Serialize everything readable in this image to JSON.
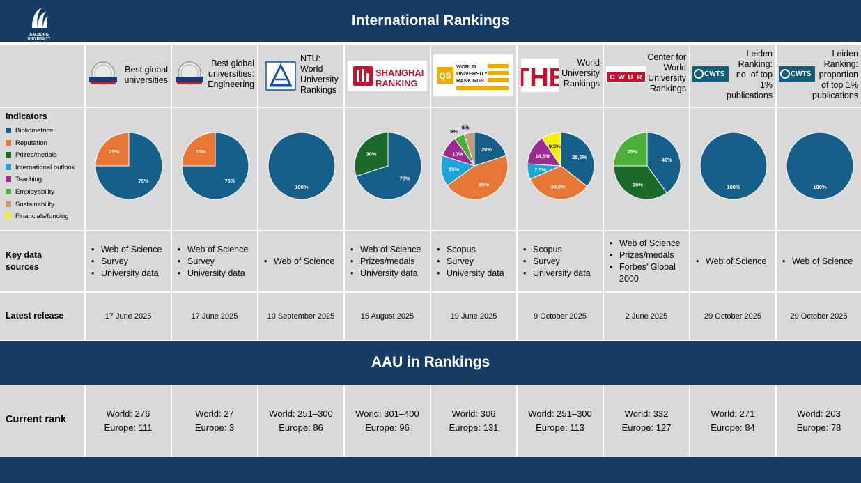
{
  "header": {
    "title": "International Rankings",
    "logo_text": "AALBORG UNIVERSITY"
  },
  "section2": {
    "title": "AAU in Rankings"
  },
  "colors": {
    "band": "#173c64",
    "cell": "#d9d9d9",
    "Bibliometrics": "#155f8a",
    "Reputation": "#e87634",
    "Prizes/medals": "#1b6a2a",
    "International outlook": "#1ea4d8",
    "Teaching": "#9c2b93",
    "Employability": "#4caf3a",
    "Sustainability": "#c49a79",
    "Financials/funding": "#f5f00a"
  },
  "rows": {
    "indicators": "Indicators",
    "key_sources": "Key data sources",
    "latest_release": "Latest release",
    "current_rank": "Current rank"
  },
  "legend": [
    "Bibliometrics",
    "Reputation",
    "Prizes/medals",
    "International outlook",
    "Teaching",
    "Employability",
    "Sustainability",
    "Financials/funding"
  ],
  "rankings": [
    {
      "name": "Best global universities",
      "logo": "usnews-icon",
      "sources": [
        "Web of Science",
        "Survey",
        "University data"
      ],
      "release": "17 June 2025",
      "world": "World: 276",
      "europe": "Europe: 111",
      "pie": [
        {
          "cat": "Bibliometrics",
          "v": 75,
          "label": "75%"
        },
        {
          "cat": "Reputation",
          "v": 25,
          "label": "25%"
        }
      ]
    },
    {
      "name": "Best global universities: Engineering",
      "logo": "usnews-icon",
      "sources": [
        "Web of Science",
        "Survey",
        "University data"
      ],
      "release": "17 June 2025",
      "world": "World: 27",
      "europe": "Europe: 3",
      "pie": [
        {
          "cat": "Bibliometrics",
          "v": 75,
          "label": "75%"
        },
        {
          "cat": "Reputation",
          "v": 25,
          "label": "25%"
        }
      ]
    },
    {
      "name": "NTU: World University Rankings",
      "logo": "ntu-icon",
      "sources": [
        "Web of Science"
      ],
      "release": "10 September 2025",
      "world": "World: 251–300",
      "europe": "Europe: 86",
      "pie": [
        {
          "cat": "Bibliometrics",
          "v": 100,
          "label": "100%"
        }
      ]
    },
    {
      "name": "SHANGHAI RANKING",
      "logo": "shanghai-ranking-logo",
      "sources": [
        "Web of Science",
        "Prizes/medals",
        "University data"
      ],
      "release": "15 August 2025",
      "world": "World: 301–400",
      "europe": "Europe: 96",
      "pie": [
        {
          "cat": "Bibliometrics",
          "v": 70,
          "label": "70%"
        },
        {
          "cat": "Prizes/medals",
          "v": 30,
          "label": "30%"
        }
      ]
    },
    {
      "name": "WORLD UNIVERSITY RANKINGS",
      "logo": "qs-logo",
      "logo_mark": "QS",
      "sources": [
        "Scopus",
        "Survey",
        "University data"
      ],
      "release": "19 June 2025",
      "world": "World: 306",
      "europe": "Europe: 131",
      "pie": [
        {
          "cat": "Bibliometrics",
          "v": 20,
          "label": "20%"
        },
        {
          "cat": "Reputation",
          "v": 45,
          "label": "45%"
        },
        {
          "cat": "International outlook",
          "v": 15,
          "label": "15%"
        },
        {
          "cat": "Teaching",
          "v": 10,
          "label": "10%"
        },
        {
          "cat": "Employability",
          "v": 5,
          "label": "5%"
        },
        {
          "cat": "Sustainability",
          "v": 5,
          "label": "5%"
        }
      ]
    },
    {
      "name": "World University Rankings",
      "logo": "the-logo",
      "logo_mark": "THE",
      "sources": [
        "Scopus",
        "Survey",
        "University data"
      ],
      "release": "9 October 2025",
      "world": "World: 251–300",
      "europe": "Europe: 113",
      "pie": [
        {
          "cat": "Bibliometrics",
          "v": 35.5,
          "label": "35,5%"
        },
        {
          "cat": "Reputation",
          "v": 33,
          "label": "33,0%"
        },
        {
          "cat": "International outlook",
          "v": 7.5,
          "label": "7,5%"
        },
        {
          "cat": "Teaching",
          "v": 14.5,
          "label": "14,5%"
        },
        {
          "cat": "Financials/funding",
          "v": 9.5,
          "label": "9,5%"
        }
      ]
    },
    {
      "name": "Center for World University Rankings",
      "logo": "cwur-logo",
      "logo_mark": "CWUR",
      "sources": [
        "Web of Science",
        "Prizes/medals",
        "Forbes’ Global 2000"
      ],
      "release": "2 June 2025",
      "world": "World: 332",
      "europe": "Europe: 127",
      "pie": [
        {
          "cat": "Bibliometrics",
          "v": 40,
          "label": "40%"
        },
        {
          "cat": "Prizes/medals",
          "v": 35,
          "label": "35%"
        },
        {
          "cat": "Employability",
          "v": 25,
          "label": "25%"
        }
      ]
    },
    {
      "name": "Leiden Ranking: no. of top 1% publications",
      "logo": "cwts-logo",
      "logo_mark": "CWTS",
      "sources": [
        "Web of Science"
      ],
      "release": "29 October 2025",
      "world": "World: 271",
      "europe": "Europe: 84",
      "pie": [
        {
          "cat": "Bibliometrics",
          "v": 100,
          "label": "100%"
        }
      ]
    },
    {
      "name": "Leiden Ranking: proportion of top 1% publications",
      "logo": "cwts-logo",
      "logo_mark": "CWTS",
      "sources": [
        "Web of Science"
      ],
      "release": "29 October 2025",
      "world": "World: 203",
      "europe": "Europe: 78",
      "pie": [
        {
          "cat": "Bibliometrics",
          "v": 100,
          "label": "100%"
        }
      ]
    }
  ]
}
